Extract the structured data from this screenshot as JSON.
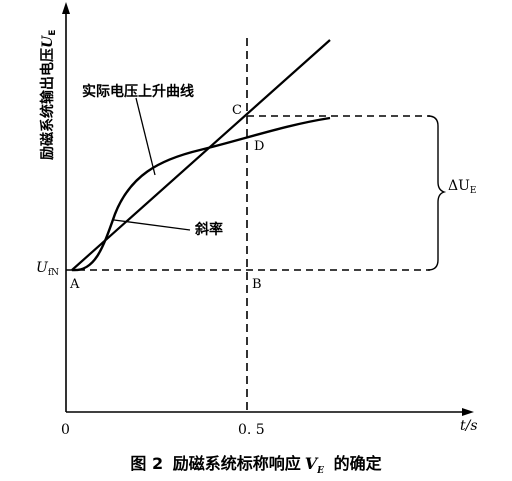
{
  "figure": {
    "y_axis_label": "励磁系统输出电压",
    "y_axis_symbol": "U",
    "y_axis_subscript": "E",
    "x_axis_label": "t/s",
    "origin_label": "0",
    "x_tick_label": "0. 5",
    "uf_label": "U",
    "uf_subscript": "fN",
    "point_a": "A",
    "point_b": "B",
    "point_c": "C",
    "point_d": "D",
    "curve_label": "实际电压上升曲线",
    "slope_label": "斜率",
    "delta_label_prefix": "ΔU",
    "delta_label_subscript": "E"
  },
  "caption": {
    "number": "图 2",
    "text": "励磁系统标称响应",
    "symbol": "V",
    "symbol_subscript": "E",
    "suffix": "的确定"
  }
}
